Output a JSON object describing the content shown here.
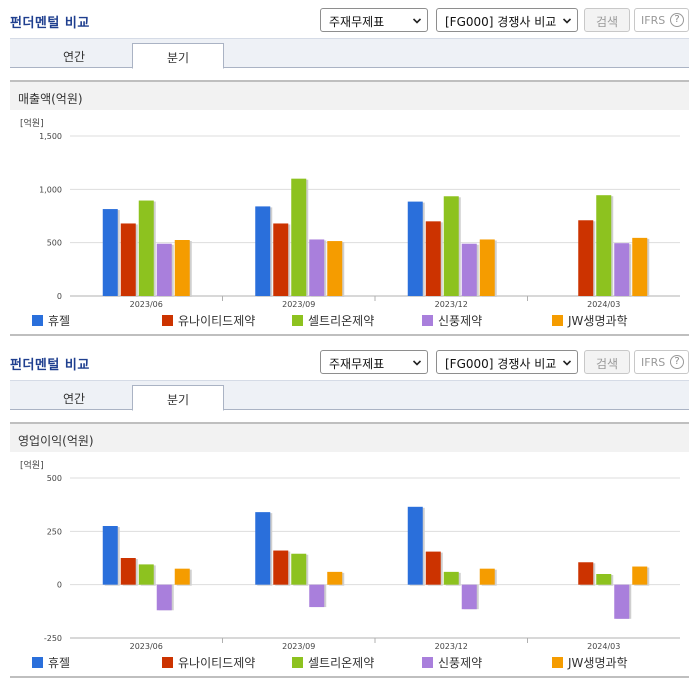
{
  "sections": [
    {
      "header": {
        "title": "펀더멘털 비교",
        "statement_select": "주재무제표",
        "comparison_select": "[FG000] 경쟁사 비교",
        "search_label": "검색",
        "ifrs_label": "IFRS",
        "help_glyph": "?"
      },
      "tabs": [
        {
          "label": "연간"
        },
        {
          "label": "분기"
        }
      ],
      "active_tab": 1,
      "panel_title": "매출액(억원)"
    },
    {
      "header": {
        "title": "펀더멘털 비교",
        "statement_select": "주재무제표",
        "comparison_select": "[FG000] 경쟁사 비교",
        "search_label": "검색",
        "ifrs_label": "IFRS",
        "help_glyph": "?"
      },
      "tabs": [
        {
          "label": "연간"
        },
        {
          "label": "분기"
        }
      ],
      "active_tab": 1,
      "panel_title": "영업이익(억원)"
    }
  ],
  "legend_colors": [
    "#2a6fdb",
    "#cc3300",
    "#8dc21f",
    "#a97fdc",
    "#f59c00"
  ],
  "chart_data": [
    {
      "type": "bar",
      "unit_label": "[억원]",
      "categories": [
        "2023/06",
        "2023/09",
        "2023/12",
        "2024/03"
      ],
      "ylim": [
        0,
        1500
      ],
      "yticks": [
        0,
        500,
        1000,
        1500
      ],
      "ytick_labels": [
        "0",
        "500",
        "1,000",
        "1,500"
      ],
      "grid": true,
      "legend": "bottom",
      "series": [
        {
          "name": "휴젤",
          "values": [
            815,
            840,
            885,
            null
          ]
        },
        {
          "name": "유나이티드제약",
          "values": [
            680,
            680,
            700,
            710
          ]
        },
        {
          "name": "셀트리온제약",
          "values": [
            895,
            1100,
            935,
            945
          ]
        },
        {
          "name": "신풍제약",
          "values": [
            490,
            530,
            490,
            495
          ]
        },
        {
          "name": "JW생명과학",
          "values": [
            525,
            515,
            530,
            545
          ]
        }
      ]
    },
    {
      "type": "bar",
      "unit_label": "[억원]",
      "categories": [
        "2023/06",
        "2023/09",
        "2023/12",
        "2024/03"
      ],
      "ylim": [
        -250,
        500
      ],
      "yticks": [
        -250,
        0,
        250,
        500
      ],
      "ytick_labels": [
        "-250",
        "0",
        "250",
        "500"
      ],
      "grid": true,
      "legend": "bottom",
      "series": [
        {
          "name": "휴젤",
          "values": [
            275,
            340,
            365,
            null
          ]
        },
        {
          "name": "유나이티드제약",
          "values": [
            125,
            160,
            155,
            105
          ]
        },
        {
          "name": "셀트리온제약",
          "values": [
            95,
            145,
            60,
            50
          ]
        },
        {
          "name": "신풍제약",
          "values": [
            -120,
            -105,
            -115,
            -160
          ]
        },
        {
          "name": "JW생명과학",
          "values": [
            75,
            60,
            75,
            85
          ]
        }
      ]
    }
  ]
}
